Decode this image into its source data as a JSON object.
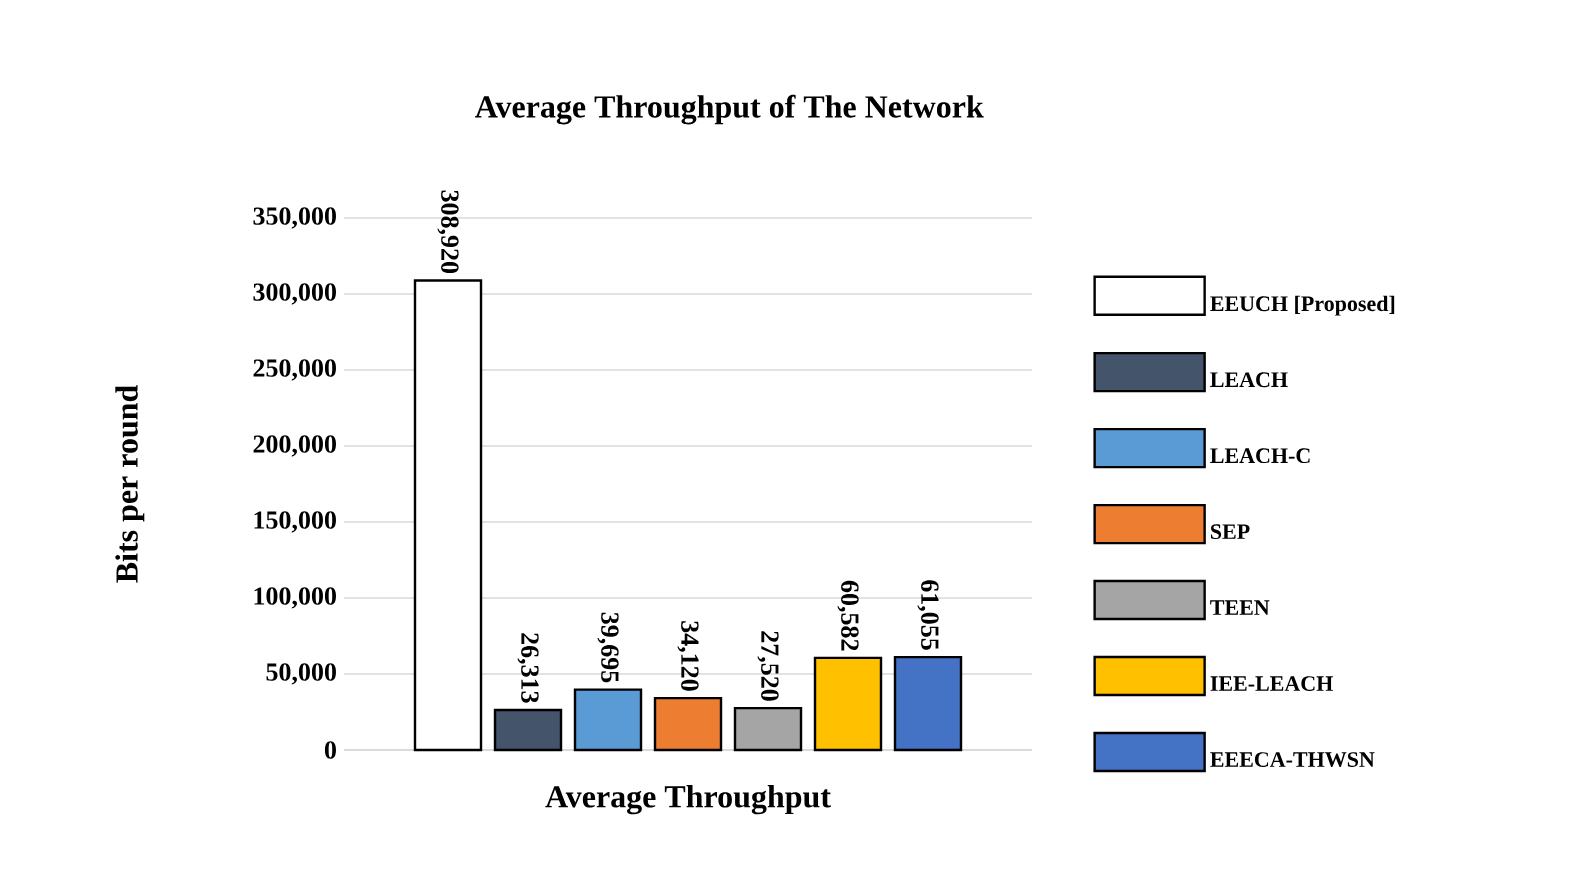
{
  "chart_data": {
    "type": "bar",
    "title": "Average Throughput of The Network",
    "ylabel": "Bits per round",
    "categories": [
      "Average Throughput"
    ],
    "series": [
      {
        "name": "EEUCH [Proposed]",
        "color": "#ffffff",
        "values": [
          308920
        ],
        "value_labels": [
          "308,920"
        ]
      },
      {
        "name": "LEACH",
        "color": "#44546a",
        "values": [
          26313
        ],
        "value_labels": [
          "26,313"
        ]
      },
      {
        "name": "LEACH-C",
        "color": "#5b9bd5",
        "values": [
          39695
        ],
        "value_labels": [
          "39,695"
        ]
      },
      {
        "name": "SEP",
        "color": "#ed7d31",
        "values": [
          34120
        ],
        "value_labels": [
          "34,120"
        ]
      },
      {
        "name": "TEEN",
        "color": "#a5a5a5",
        "values": [
          27520
        ],
        "value_labels": [
          "27,520"
        ]
      },
      {
        "name": "IEE-LEACH",
        "color": "#ffc000",
        "values": [
          60582
        ],
        "value_labels": [
          "60,582"
        ]
      },
      {
        "name": "EEECA-THWSN",
        "color": "#4472c4",
        "values": [
          61055
        ],
        "value_labels": [
          "61,055"
        ]
      }
    ],
    "ylim": [
      0,
      350000
    ],
    "yticks": [
      {
        "value": 0,
        "label": "0"
      },
      {
        "value": 50000,
        "label": "50,000"
      },
      {
        "value": 100000,
        "label": "100,000"
      },
      {
        "value": 150000,
        "label": "150,000"
      },
      {
        "value": 200000,
        "label": "200,000"
      },
      {
        "value": 250000,
        "label": "250,000"
      },
      {
        "value": 300000,
        "label": "300,000"
      },
      {
        "value": 350000,
        "label": "350,000"
      }
    ],
    "grid": "y",
    "legend": "right"
  }
}
